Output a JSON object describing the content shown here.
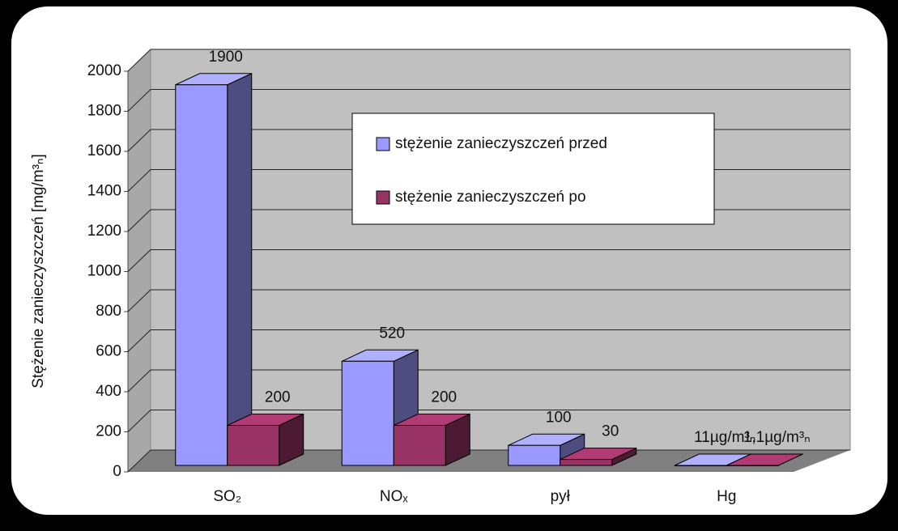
{
  "chart_data": {
    "type": "bar3d",
    "y_label": "Stężenie zanieczyszczeń [mg/m³ₙ]",
    "categories": [
      "SO₂",
      "NOₓ",
      "pył",
      "Hg"
    ],
    "series": [
      {
        "name": "stężenie zanieczyszczeń przed",
        "color": "#9999ff",
        "values": [
          1900,
          520,
          100,
          0.011
        ],
        "value_labels": [
          "1900",
          "520",
          "100",
          "11µg/m³ₙ"
        ]
      },
      {
        "name": "stężenie zanieczyszczeń po",
        "color": "#993366",
        "values": [
          200,
          200,
          30,
          0.0011
        ],
        "value_labels": [
          "200",
          "200",
          "30",
          "1,1µg/m³ₙ"
        ]
      }
    ],
    "ylim": [
      0,
      2000
    ],
    "yticks": [
      0,
      200,
      400,
      600,
      800,
      1000,
      1200,
      1400,
      1600,
      1800,
      2000
    ],
    "grid": true
  }
}
